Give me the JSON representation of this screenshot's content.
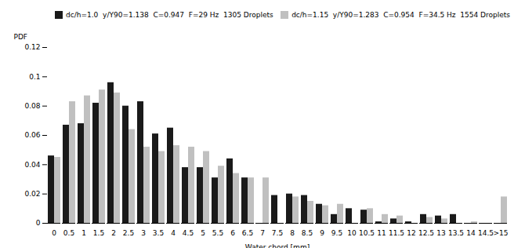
{
  "chart_data": {
    "type": "bar",
    "categories": [
      "0",
      "0.5",
      "1",
      "1.5",
      "2",
      "2.5",
      "3",
      "3.5",
      "4",
      "4.5",
      "5",
      "5.5",
      "6",
      "6.5",
      "7",
      "7.5",
      "8",
      "8.5",
      "9",
      "9.5",
      "10",
      "10.5",
      "11",
      "11.5",
      "12",
      "12.5",
      "13",
      "13.5",
      "14",
      "14.5",
      ">15"
    ],
    "series": [
      {
        "name": "dc/h=1.0  y/Y90=1.138  C=0.947  F=29 Hz  1305 Droplets",
        "color": "#1a1a1a",
        "values": [
          0.046,
          0.067,
          0.068,
          0.082,
          0.096,
          0.08,
          0.083,
          0.061,
          0.065,
          0.038,
          0.038,
          0.031,
          0.044,
          0.031,
          0.0,
          0.019,
          0.02,
          0.019,
          0.013,
          0.006,
          0.01,
          0.009,
          0.001,
          0.003,
          0.001,
          0.006,
          0.005,
          0.006,
          0.0,
          0.0,
          0.0
        ]
      },
      {
        "name": "dc/h=1.15  y/Y90=1.283  C=0.954  F=34.5 Hz  1554 Droplets",
        "color": "#c0c0c0",
        "values": [
          0.045,
          0.083,
          0.087,
          0.091,
          0.089,
          0.064,
          0.052,
          0.049,
          0.053,
          0.052,
          0.049,
          0.039,
          0.034,
          0.031,
          0.031,
          0.0,
          0.018,
          0.015,
          0.012,
          0.013,
          0.0,
          0.01,
          0.006,
          0.005,
          0.0,
          0.004,
          0.003,
          0.0,
          0.001,
          0.0,
          0.018
        ]
      }
    ],
    "xlabel": "Water chord [mm]",
    "ylabel": "PDF",
    "ylim": [
      0,
      0.12
    ],
    "yticks": [
      0,
      0.02,
      0.04,
      0.06,
      0.08,
      0.1,
      0.12
    ],
    "legend": "upper right"
  }
}
